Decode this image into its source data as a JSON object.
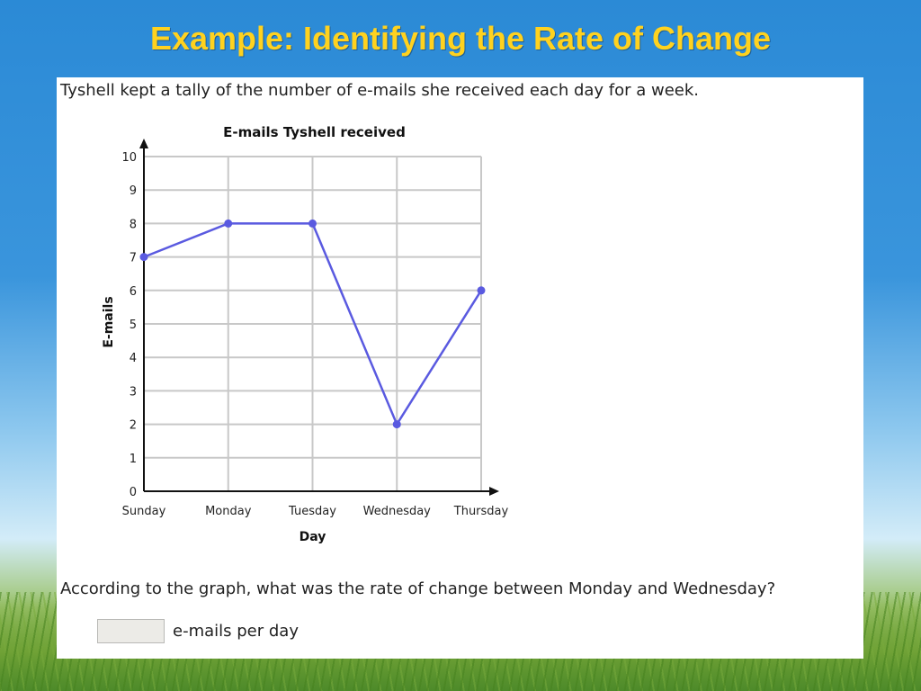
{
  "slide": {
    "title": "Example: Identifying the Rate of Change",
    "intro": "Tyshell kept a tally of the number of e-mails she received each day for a week.",
    "question": "According to the graph, what was the rate of change between Monday and Wednesday?",
    "answer_value": "",
    "answer_unit": "e-mails per day"
  },
  "colors": {
    "title": "#ffd21f",
    "series": "#5a5ae0",
    "grid": "#c8c8c8",
    "axis": "#111111"
  },
  "chart_data": {
    "type": "line",
    "title": "E-mails Tyshell received",
    "xlabel": "Day",
    "ylabel": "E-mails",
    "categories": [
      "Sunday",
      "Monday",
      "Tuesday",
      "Wednesday",
      "Thursday"
    ],
    "values": [
      7,
      8,
      8,
      2,
      6
    ],
    "ylim": [
      0,
      10
    ],
    "yticks": [
      0,
      1,
      2,
      3,
      4,
      5,
      6,
      7,
      8,
      9,
      10
    ],
    "grid": true
  }
}
